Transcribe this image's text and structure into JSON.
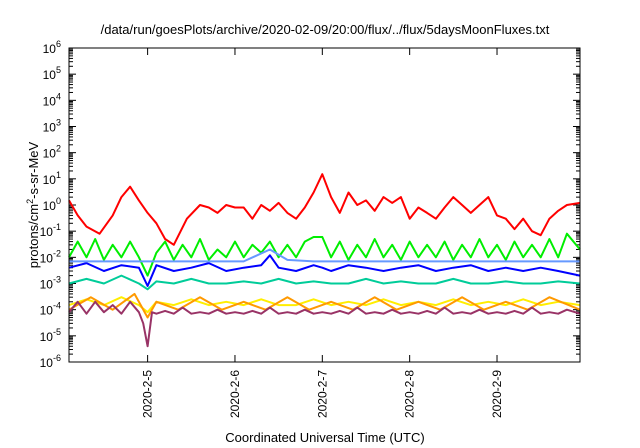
{
  "chart_data": {
    "type": "line",
    "title": "/data/run/goesPlots/archive/2020-02-09/20:00/flux/../flux/5daysMoonFluxes.txt",
    "xlabel": "Coordinated Universal Time (UTC)",
    "ylabel_main": "protons/cm",
    "ylabel_sup": "2",
    "ylabel_tail": "-s-sr-MeV",
    "y_scale": "log",
    "y_exp_range": [
      -6,
      6
    ],
    "y_tick_base": "10",
    "y_ticks": [
      "-6",
      "-5",
      "-4",
      "-3",
      "-2",
      "-1",
      "0",
      "1",
      "2",
      "3",
      "4",
      "5",
      "6"
    ],
    "x_range": [
      4.0,
      9.85
    ],
    "x_ticks": [
      {
        "label": "2020-2-5",
        "x": 4.9
      },
      {
        "label": "2020-2-6",
        "x": 5.9
      },
      {
        "label": "2020-2-7",
        "x": 6.9
      },
      {
        "label": "2020-2-8",
        "x": 7.9
      },
      {
        "label": "2020-2-9",
        "x": 8.9
      }
    ],
    "grid": false,
    "legend": "none",
    "series": [
      {
        "color": "#ff0000",
        "x": [
          4.0,
          4.1,
          4.2,
          4.35,
          4.5,
          4.6,
          4.7,
          4.8,
          4.9,
          5.0,
          5.1,
          5.2,
          5.35,
          5.5,
          5.6,
          5.7,
          5.8,
          5.9,
          6.0,
          6.1,
          6.2,
          6.3,
          6.4,
          6.5,
          6.6,
          6.7,
          6.8,
          6.9,
          7.0,
          7.1,
          7.2,
          7.3,
          7.4,
          7.5,
          7.6,
          7.7,
          7.8,
          7.9,
          8.0,
          8.1,
          8.2,
          8.3,
          8.4,
          8.5,
          8.6,
          8.7,
          8.8,
          8.9,
          9.0,
          9.1,
          9.2,
          9.3,
          9.4,
          9.5,
          9.6,
          9.7,
          9.85
        ],
        "y": [
          1.5,
          0.4,
          0.15,
          0.08,
          0.4,
          2,
          5,
          1.5,
          0.5,
          0.2,
          0.05,
          0.03,
          0.3,
          1,
          0.8,
          0.5,
          1,
          0.8,
          0.8,
          0.3,
          1,
          0.6,
          1.2,
          0.5,
          0.3,
          0.8,
          3,
          15,
          2,
          0.5,
          3,
          1,
          1.5,
          0.6,
          2,
          1.2,
          2,
          0.3,
          0.8,
          0.5,
          0.3,
          0.8,
          2,
          1,
          0.5,
          1,
          2,
          0.4,
          0.3,
          0.12,
          0.3,
          0.1,
          0.07,
          0.3,
          0.6,
          1,
          1.2
        ]
      },
      {
        "color": "#00ee00",
        "x": [
          4.0,
          4.1,
          4.2,
          4.3,
          4.4,
          4.5,
          4.6,
          4.7,
          4.8,
          4.9,
          5.0,
          5.1,
          5.2,
          5.3,
          5.4,
          5.5,
          5.6,
          5.7,
          5.8,
          5.9,
          6.0,
          6.1,
          6.2,
          6.3,
          6.4,
          6.5,
          6.6,
          6.7,
          6.8,
          6.9,
          7.0,
          7.1,
          7.2,
          7.3,
          7.4,
          7.5,
          7.6,
          7.7,
          7.8,
          7.9,
          8.0,
          8.1,
          8.2,
          8.3,
          8.4,
          8.5,
          8.6,
          8.7,
          8.8,
          8.9,
          9.0,
          9.1,
          9.2,
          9.3,
          9.4,
          9.5,
          9.6,
          9.7,
          9.85
        ],
        "y": [
          0.01,
          0.04,
          0.01,
          0.05,
          0.008,
          0.03,
          0.01,
          0.04,
          0.01,
          0.002,
          0.015,
          0.04,
          0.008,
          0.03,
          0.01,
          0.05,
          0.008,
          0.02,
          0.01,
          0.04,
          0.01,
          0.03,
          0.015,
          0.04,
          0.01,
          0.03,
          0.01,
          0.04,
          0.06,
          0.06,
          0.01,
          0.04,
          0.008,
          0.03,
          0.01,
          0.05,
          0.01,
          0.03,
          0.008,
          0.04,
          0.01,
          0.03,
          0.01,
          0.04,
          0.008,
          0.03,
          0.01,
          0.05,
          0.01,
          0.03,
          0.008,
          0.04,
          0.01,
          0.03,
          0.01,
          0.05,
          0.01,
          0.08,
          0.02
        ]
      },
      {
        "color": "#0000ff",
        "x": [
          4.0,
          4.2,
          4.4,
          4.6,
          4.8,
          4.9,
          5.0,
          5.2,
          5.4,
          5.6,
          5.8,
          6.0,
          6.2,
          6.3,
          6.4,
          6.6,
          6.8,
          6.9,
          7.0,
          7.2,
          7.4,
          7.6,
          7.8,
          8.0,
          8.2,
          8.4,
          8.6,
          8.8,
          9.0,
          9.2,
          9.4,
          9.6,
          9.85
        ],
        "y": [
          0.004,
          0.006,
          0.003,
          0.005,
          0.004,
          0.0008,
          0.005,
          0.003,
          0.004,
          0.006,
          0.003,
          0.004,
          0.005,
          0.012,
          0.004,
          0.003,
          0.005,
          0.004,
          0.003,
          0.005,
          0.004,
          0.003,
          0.004,
          0.005,
          0.003,
          0.004,
          0.005,
          0.003,
          0.004,
          0.003,
          0.004,
          0.003,
          0.002
        ]
      },
      {
        "color": "#6699ff",
        "x": [
          4.0,
          4.5,
          5.0,
          5.5,
          6.0,
          6.3,
          6.5,
          6.8,
          7.0,
          7.5,
          8.0,
          8.5,
          9.0,
          9.5,
          9.85
        ],
        "y": [
          0.007,
          0.007,
          0.007,
          0.007,
          0.007,
          0.02,
          0.008,
          0.007,
          0.007,
          0.007,
          0.007,
          0.007,
          0.007,
          0.007,
          0.007
        ]
      },
      {
        "color": "#00cc99",
        "x": [
          4.0,
          4.2,
          4.4,
          4.6,
          4.8,
          4.9,
          5.0,
          5.2,
          5.4,
          5.6,
          5.8,
          6.0,
          6.2,
          6.4,
          6.6,
          6.8,
          7.0,
          7.2,
          7.4,
          7.6,
          7.8,
          8.0,
          8.2,
          8.4,
          8.6,
          8.8,
          9.0,
          9.2,
          9.4,
          9.6,
          9.85
        ],
        "y": [
          0.001,
          0.0015,
          0.001,
          0.002,
          0.001,
          0.0006,
          0.0012,
          0.001,
          0.0015,
          0.001,
          0.001,
          0.0012,
          0.001,
          0.0015,
          0.001,
          0.0012,
          0.001,
          0.001,
          0.0015,
          0.001,
          0.0012,
          0.001,
          0.001,
          0.0015,
          0.001,
          0.001,
          0.0012,
          0.001,
          0.001,
          0.0012,
          0.001
        ]
      },
      {
        "color": "#ffee00",
        "x": [
          4.0,
          4.2,
          4.4,
          4.6,
          4.8,
          4.9,
          5.0,
          5.2,
          5.4,
          5.6,
          5.8,
          6.0,
          6.2,
          6.4,
          6.6,
          6.8,
          7.0,
          7.2,
          7.4,
          7.6,
          7.8,
          8.0,
          8.2,
          8.4,
          8.6,
          8.8,
          9.0,
          9.2,
          9.4,
          9.6,
          9.85
        ],
        "y": [
          0.00015,
          0.00025,
          0.00015,
          0.0003,
          0.00015,
          8e-05,
          0.0002,
          0.00015,
          0.00025,
          0.00015,
          0.0002,
          0.00015,
          0.00025,
          0.00015,
          0.00015,
          0.00025,
          0.00015,
          0.0002,
          0.00015,
          0.00025,
          0.00015,
          0.0002,
          0.00015,
          0.00025,
          0.00015,
          0.0002,
          0.00015,
          0.00025,
          0.00015,
          0.0002,
          0.00015
        ]
      },
      {
        "color": "#ff9900",
        "x": [
          4.0,
          4.25,
          4.5,
          4.75,
          4.9,
          5.0,
          5.25,
          5.5,
          5.75,
          6.0,
          6.25,
          6.5,
          6.75,
          7.0,
          7.25,
          7.5,
          7.75,
          8.0,
          8.25,
          8.5,
          8.75,
          9.0,
          9.25,
          9.5,
          9.85
        ],
        "y": [
          0.0001,
          0.0003,
          0.0001,
          0.0004,
          5e-05,
          0.0002,
          0.0001,
          0.0003,
          0.0001,
          0.0002,
          0.0001,
          0.0003,
          0.0001,
          0.0002,
          0.0001,
          0.0003,
          0.0001,
          0.0002,
          0.0001,
          0.0003,
          0.0001,
          0.0002,
          0.0001,
          0.0003,
          0.0001
        ]
      },
      {
        "color": "#993366",
        "x": [
          4.0,
          4.1,
          4.2,
          4.3,
          4.4,
          4.5,
          4.6,
          4.7,
          4.8,
          4.85,
          4.9,
          4.95,
          5.0,
          5.1,
          5.2,
          5.3,
          5.4,
          5.5,
          5.6,
          5.7,
          5.8,
          5.9,
          6.0,
          6.1,
          6.2,
          6.3,
          6.4,
          6.5,
          6.6,
          6.7,
          6.8,
          6.9,
          7.0,
          7.1,
          7.2,
          7.3,
          7.4,
          7.5,
          7.6,
          7.7,
          7.8,
          7.9,
          8.0,
          8.1,
          8.2,
          8.3,
          8.4,
          8.5,
          8.6,
          8.7,
          8.8,
          8.9,
          9.0,
          9.1,
          9.2,
          9.3,
          9.4,
          9.5,
          9.6,
          9.7,
          9.85
        ],
        "y": [
          8e-05,
          0.0002,
          7e-05,
          0.0002,
          8e-05,
          0.00015,
          7e-05,
          0.0002,
          8e-05,
          3e-05,
          4e-06,
          8e-05,
          7e-05,
          9e-05,
          7e-05,
          0.00012,
          7e-05,
          8e-05,
          7e-05,
          0.0001,
          7e-05,
          8e-05,
          7e-05,
          9e-05,
          7e-05,
          0.00012,
          7e-05,
          8e-05,
          7e-05,
          0.0001,
          7e-05,
          8e-05,
          7e-05,
          9e-05,
          7e-05,
          0.00012,
          7e-05,
          8e-05,
          7e-05,
          0.0001,
          7e-05,
          8e-05,
          7e-05,
          9e-05,
          7e-05,
          0.00012,
          7e-05,
          8e-05,
          7e-05,
          0.0001,
          7e-05,
          8e-05,
          7e-05,
          9e-05,
          7e-05,
          0.00012,
          7e-05,
          8e-05,
          7e-05,
          0.0001,
          7e-05
        ]
      }
    ]
  }
}
